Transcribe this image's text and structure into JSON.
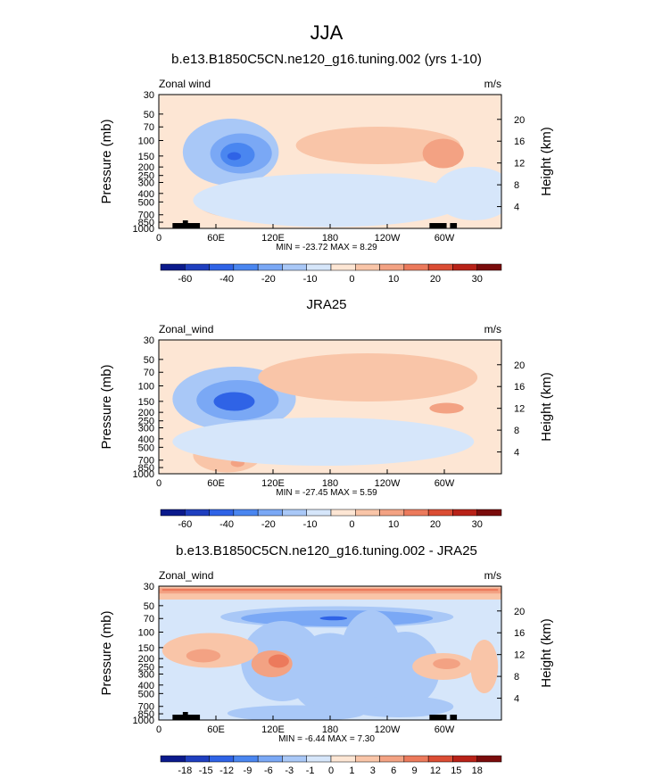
{
  "page_title": "JJA",
  "colors": {
    "wind_scale": [
      "#0b1a8c",
      "#1f3fbf",
      "#2f63e6",
      "#4a86f0",
      "#7aa8f5",
      "#a9c8f7",
      "#d6e6fa",
      "#fde6d4",
      "#f9c5a8",
      "#f3a283",
      "#ec7a5c",
      "#db4d34",
      "#b82218",
      "#7a0c0c"
    ],
    "diff_scale": [
      "#0b1a8c",
      "#1f3fbf",
      "#2f63e6",
      "#4a86f0",
      "#7aa8f5",
      "#a9c8f7",
      "#d6e6fa",
      "#fde6d4",
      "#f9c5a8",
      "#f3a283",
      "#ec7a5c",
      "#db4d34",
      "#b82218",
      "#7a0c0c"
    ]
  },
  "chart_data": [
    {
      "type": "heatmap",
      "title": "b.e13.B1850C5CN.ne120_g16.tuning.002 (yrs 1-10)",
      "left_label": "Zonal wind",
      "units": "m/s",
      "ylabel": "Pressure (mb)",
      "ylabel_right": "Height (km)",
      "x_ticks": [
        "0",
        "60E",
        "120E",
        "180",
        "120W",
        "60W"
      ],
      "y_ticks": [
        "30",
        "50",
        "70",
        "100",
        "150",
        "200",
        "250",
        "300",
        "400",
        "500",
        "700",
        "850",
        "1000"
      ],
      "height_ticks": [
        "20",
        "16",
        "12",
        "8",
        "4"
      ],
      "stats": "MIN = -23.72   MAX =   8.29",
      "colorbar_labels": [
        "-60",
        "-40",
        "-20",
        "-10",
        "0",
        "10",
        "20",
        "30"
      ],
      "ylim": [
        1000,
        30
      ]
    },
    {
      "type": "heatmap",
      "title": "JRA25",
      "left_label": "Zonal_wind",
      "units": "m/s",
      "ylabel": "Pressure (mb)",
      "ylabel_right": "Height (km)",
      "x_ticks": [
        "0",
        "60E",
        "120E",
        "180",
        "120W",
        "60W"
      ],
      "y_ticks": [
        "30",
        "50",
        "70",
        "100",
        "150",
        "200",
        "250",
        "300",
        "400",
        "500",
        "700",
        "850",
        "1000"
      ],
      "height_ticks": [
        "20",
        "16",
        "12",
        "8",
        "4"
      ],
      "stats": "MIN = -27.45   MAX =   5.59",
      "colorbar_labels": [
        "-60",
        "-40",
        "-20",
        "-10",
        "0",
        "10",
        "20",
        "30"
      ],
      "ylim": [
        1000,
        30
      ]
    },
    {
      "type": "heatmap",
      "title": "b.e13.B1850C5CN.ne120_g16.tuning.002 - JRA25",
      "left_label": "Zonal_wind",
      "units": "m/s",
      "ylabel": "Pressure (mb)",
      "ylabel_right": "Height (km)",
      "x_ticks": [
        "0",
        "60E",
        "120E",
        "180",
        "120W",
        "60W"
      ],
      "y_ticks": [
        "30",
        "50",
        "70",
        "100",
        "150",
        "200",
        "250",
        "300",
        "400",
        "500",
        "700",
        "850",
        "1000"
      ],
      "height_ticks": [
        "20",
        "16",
        "12",
        "8",
        "4"
      ],
      "stats": "MIN =  -6.44   MAX =   7.30",
      "colorbar_labels": [
        "-18",
        "-15",
        "-12",
        "-9",
        "-6",
        "-3",
        "-1",
        "0",
        "1",
        "3",
        "6",
        "9",
        "12",
        "15",
        "18"
      ],
      "ylim": [
        1000,
        30
      ]
    }
  ]
}
